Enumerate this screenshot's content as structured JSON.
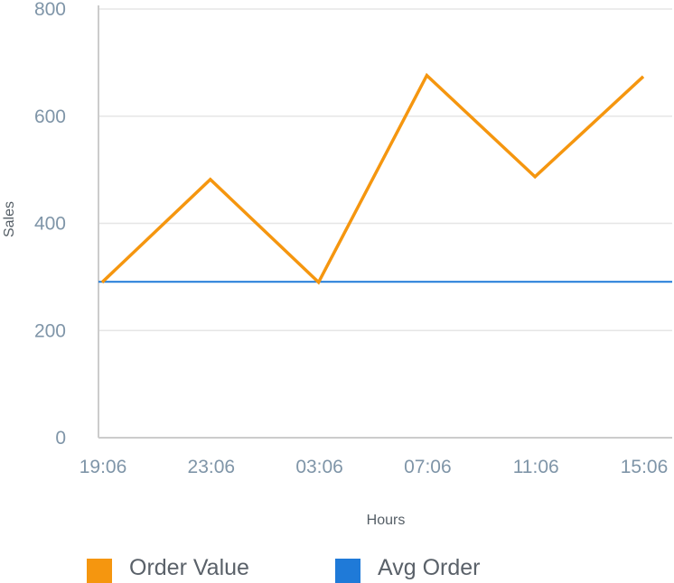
{
  "chart_data": {
    "type": "line",
    "categories": [
      "19:06",
      "23:06",
      "03:06",
      "07:06",
      "11:06",
      "15:06"
    ],
    "series": [
      {
        "name": "Order Value",
        "values": [
          290,
          482,
          290,
          676,
          487,
          674
        ],
        "color": "#f5960f"
      },
      {
        "name": "Avg Order",
        "values": [
          291,
          291,
          291,
          291,
          291,
          291
        ],
        "color": "#1f7ad8"
      }
    ],
    "xlabel": "Hours",
    "ylabel": "Sales",
    "ylim": [
      0,
      800
    ],
    "yticks": [
      0,
      200,
      400,
      600,
      800
    ],
    "grid": true,
    "legend_position": "bottom-left"
  },
  "colors": {
    "grid": "#e6e6e6",
    "axis": "#cccccc",
    "tick_text": "#7f95a8"
  }
}
